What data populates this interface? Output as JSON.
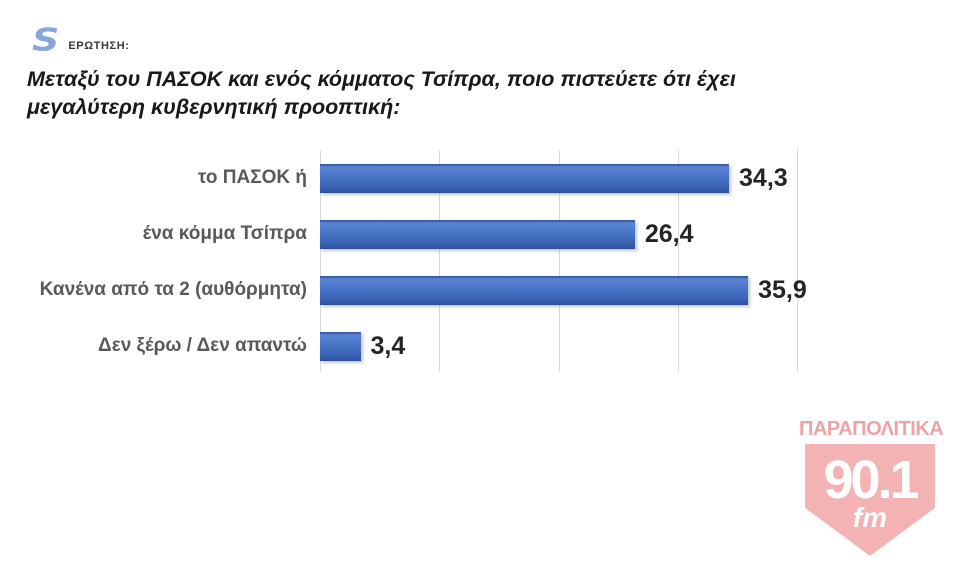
{
  "header": {
    "logo_letter": "S",
    "question_label": "ΕΡΩΤΗΣΗ:",
    "question_text": "Μεταξύ του ΠΑΣΟΚ και ενός κόμματος Τσίπρα, ποιο πιστεύετε ότι έχει μεγαλύτερη κυβερνητική προοπτική:"
  },
  "chart_data": {
    "type": "bar",
    "orientation": "horizontal",
    "title": "",
    "xlabel": "",
    "ylabel": "",
    "categories": [
      "το ΠΑΣΟΚ ή",
      "ένα κόμμα Τσίπρα",
      "Κανένα από τα 2 (αυθόρμητα)",
      "Δεν ξέρω / Δεν απαντώ"
    ],
    "values": [
      34.3,
      26.4,
      35.9,
      3.4
    ],
    "value_labels": [
      "34,3",
      "26,4",
      "35,9",
      "3,4"
    ],
    "xlim": [
      0,
      40
    ],
    "gridlines": [
      0,
      10,
      20,
      30,
      40
    ],
    "grid": true,
    "legend": false,
    "bar_color": "#3f6cc0",
    "grid_color": "#d9d9d9",
    "value_label_color": "#242424",
    "category_label_color": "#595959"
  },
  "watermark": {
    "station_name": "ΠΑΡΑΠΟΛΙΤΙΚΑ",
    "frequency": "90.1",
    "band_label": "fm",
    "accent_color": "#eb9a9e"
  }
}
